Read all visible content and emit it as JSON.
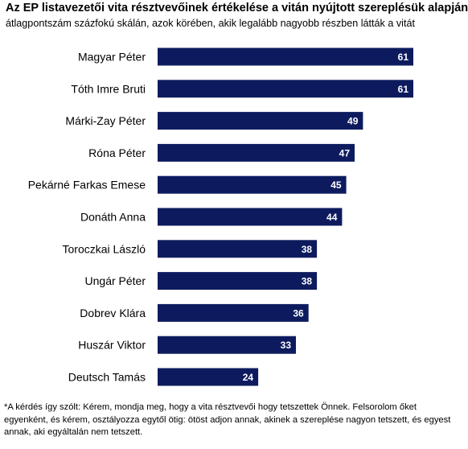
{
  "title": "Az EP listavezetői vita résztvevőinek értékelése a vitán nyújtott szereplésük alapján",
  "subtitle": "átlagpontszám százfokú skálán, azok körében, akik legalább nagyobb részben látták a vitát",
  "footnote": "*A kérdés így szólt: Kérem, mondja meg, hogy a vita résztvevői hogy tetszettek Önnek. Felsorolom őket egyenként, és kérem, osztályozza egytől ötig: ötöst adjon annak, akinek a szereplése nagyon tetszett, és egyest annak, aki egyáltalán nem tetszett.",
  "colors": {
    "bar": "#0d1b5e",
    "label_on_bar": "#ffffff"
  },
  "chart_data": {
    "type": "bar",
    "orientation": "horizontal",
    "categories": [
      "Magyar Péter",
      "Tóth Imre Bruti",
      "Márki-Zay Péter",
      "Róna Péter",
      "Pekárné Farkas Emese",
      "Donáth Anna",
      "Toroczkai László",
      "Ungár Péter",
      "Dobrev Klára",
      "Huszár Viktor",
      "Deutsch Tamás"
    ],
    "values": [
      61,
      61,
      49,
      47,
      45,
      44,
      38,
      38,
      36,
      33,
      24
    ],
    "title": "Az EP listavezetői vita résztvevőinek értékelése a vitán nyújtott szereplésük alapján",
    "xlabel": "",
    "ylabel": "",
    "xlim": [
      0,
      100
    ],
    "grid": false,
    "legend": "none",
    "data_labels": true
  }
}
